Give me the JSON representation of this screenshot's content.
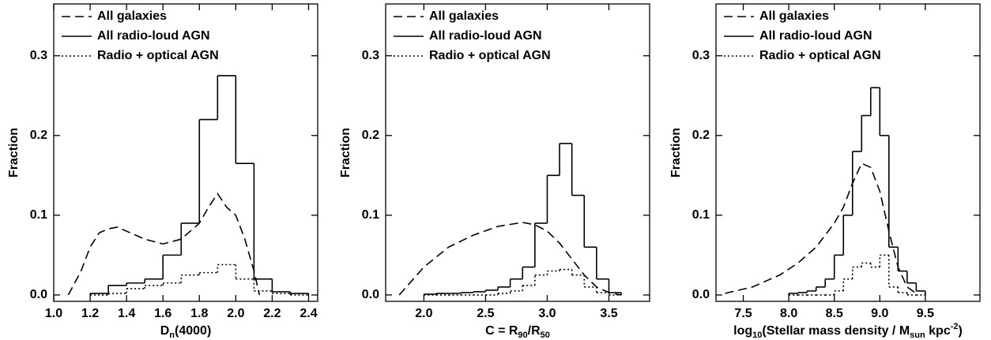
{
  "chart_data": [
    {
      "type": "histogram",
      "ylabel": "Fraction",
      "xlabel": [
        {
          "text": "D"
        },
        {
          "text": "n",
          "shift": "sub"
        },
        {
          "text": "(4000)"
        }
      ],
      "xlim": [
        1.0,
        2.45
      ],
      "ylim": [
        -0.008,
        0.365
      ],
      "xticks": [
        {
          "value": 1.0,
          "label": "1.0"
        },
        1.2,
        1.4,
        1.6,
        1.8,
        {
          "value": 2.0,
          "label": "2.0"
        },
        2.2,
        2.4
      ],
      "yticks": [
        {
          "value": 0,
          "label": "0.0"
        },
        0.1,
        0.2,
        0.3
      ],
      "legend": "upper left",
      "series": [
        {
          "name": "All galaxies",
          "style": "dashed",
          "color": "#000000",
          "x": [
            1.08,
            1.15,
            1.2,
            1.25,
            1.3,
            1.35,
            1.4,
            1.5,
            1.6,
            1.7,
            1.8,
            1.85,
            1.9,
            1.95,
            2.0,
            2.05,
            2.1,
            2.13
          ],
          "values": [
            0,
            0.03,
            0.06,
            0.078,
            0.083,
            0.085,
            0.08,
            0.07,
            0.064,
            0.07,
            0.09,
            0.11,
            0.127,
            0.11,
            0.1,
            0.07,
            0.03,
            0
          ]
        },
        {
          "name": "All radio-loud AGN",
          "style": "solid",
          "color": "#000000",
          "bins": [
            1.2,
            1.3,
            1.4,
            1.5,
            1.6,
            1.7,
            1.8,
            1.9,
            2.0,
            2.1,
            2.2,
            2.3,
            2.4
          ],
          "values": [
            0.002,
            0.012,
            0.015,
            0.02,
            0.05,
            0.09,
            0.22,
            0.275,
            0.165,
            0.02,
            0.004,
            0.002
          ]
        },
        {
          "name": "Radio + optical AGN",
          "style": "dotted",
          "color": "#000000",
          "bins": [
            1.2,
            1.3,
            1.4,
            1.5,
            1.6,
            1.7,
            1.8,
            1.9,
            2.0,
            2.1,
            2.2,
            2.3,
            2.4
          ],
          "values": [
            0,
            0.002,
            0.008,
            0.012,
            0.015,
            0.025,
            0.028,
            0.038,
            0.02,
            0.005,
            0.002,
            0
          ]
        }
      ]
    },
    {
      "type": "histogram",
      "ylabel": "Fraction",
      "xlabel": [
        {
          "text": "C = R"
        },
        {
          "text": "90",
          "shift": "sub"
        },
        {
          "text": "/R"
        },
        {
          "text": "50",
          "shift": "sub"
        }
      ],
      "xlim": [
        1.69,
        3.83
      ],
      "ylim": [
        -0.008,
        0.365
      ],
      "xticks": [
        {
          "value": 2.0,
          "label": "2.0"
        },
        2.5,
        {
          "value": 3.0,
          "label": "3.0"
        },
        3.5
      ],
      "yticks": [
        {
          "value": 0,
          "label": "0.0"
        },
        0.1,
        0.2,
        0.3
      ],
      "legend": "upper left",
      "series": [
        {
          "name": "All galaxies",
          "style": "dashed",
          "color": "#000000",
          "x": [
            1.8,
            2.0,
            2.2,
            2.4,
            2.6,
            2.8,
            2.9,
            3.0,
            3.1,
            3.2,
            3.3,
            3.4,
            3.5,
            3.6
          ],
          "values": [
            0,
            0.035,
            0.06,
            0.075,
            0.086,
            0.091,
            0.088,
            0.08,
            0.065,
            0.045,
            0.025,
            0.01,
            0.003,
            0
          ]
        },
        {
          "name": "All radio-loud AGN",
          "style": "solid",
          "color": "#000000",
          "bins": [
            2.0,
            2.1,
            2.2,
            2.3,
            2.4,
            2.5,
            2.6,
            2.7,
            2.8,
            2.9,
            3.0,
            3.1,
            3.2,
            3.3,
            3.4,
            3.5,
            3.6
          ],
          "values": [
            0.001,
            0.002,
            0.002,
            0.003,
            0.004,
            0.006,
            0.01,
            0.02,
            0.035,
            0.09,
            0.15,
            0.19,
            0.125,
            0.06,
            0.02,
            0.003
          ]
        },
        {
          "name": "Radio + optical AGN",
          "style": "dotted",
          "color": "#000000",
          "bins": [
            2.0,
            2.1,
            2.2,
            2.3,
            2.4,
            2.5,
            2.6,
            2.7,
            2.8,
            2.9,
            3.0,
            3.1,
            3.2,
            3.3,
            3.4,
            3.5,
            3.6
          ],
          "values": [
            0,
            0,
            0,
            0,
            0,
            0,
            0.002,
            0.005,
            0.012,
            0.025,
            0.03,
            0.032,
            0.025,
            0.01,
            0.003,
            0
          ]
        }
      ]
    },
    {
      "type": "histogram",
      "ylabel": "Fraction",
      "xlabel": [
        {
          "text": "log"
        },
        {
          "text": "10",
          "shift": "sub"
        },
        {
          "text": "(Stellar mass density / M"
        },
        {
          "text": "sun",
          "shift": "sub"
        },
        {
          "text": " kpc"
        },
        {
          "text": "-2",
          "shift": "super"
        },
        {
          "text": ")"
        }
      ],
      "xlim": [
        7.2,
        10.1
      ],
      "ylim": [
        -0.008,
        0.365
      ],
      "xticks": [
        7.5,
        {
          "value": 8.0,
          "label": "8.0"
        },
        8.5,
        {
          "value": 9.0,
          "label": "9.0"
        },
        9.5
      ],
      "yticks": [
        {
          "value": 0,
          "label": "0.0"
        },
        0.1,
        0.2,
        0.3
      ],
      "legend": "upper left",
      "series": [
        {
          "name": "All galaxies",
          "style": "dashed",
          "color": "#000000",
          "x": [
            7.3,
            7.6,
            7.9,
            8.1,
            8.3,
            8.5,
            8.6,
            8.7,
            8.8,
            8.9,
            9.0,
            9.1,
            9.2,
            9.3,
            9.4
          ],
          "values": [
            0.002,
            0.01,
            0.025,
            0.04,
            0.06,
            0.09,
            0.11,
            0.14,
            0.165,
            0.16,
            0.13,
            0.08,
            0.035,
            0.01,
            0.002
          ]
        },
        {
          "name": "All radio-loud AGN",
          "style": "solid",
          "color": "#000000",
          "bins": [
            8.0,
            8.1,
            8.2,
            8.3,
            8.4,
            8.5,
            8.6,
            8.7,
            8.8,
            8.9,
            9.0,
            9.1,
            9.2,
            9.3,
            9.4,
            9.5
          ],
          "values": [
            0.002,
            0.003,
            0.005,
            0.01,
            0.02,
            0.05,
            0.1,
            0.18,
            0.225,
            0.26,
            0.2,
            0.06,
            0.03,
            0.015,
            0.005
          ]
        },
        {
          "name": "Radio + optical AGN",
          "style": "dotted",
          "color": "#000000",
          "bins": [
            8.0,
            8.1,
            8.2,
            8.3,
            8.4,
            8.5,
            8.6,
            8.7,
            8.8,
            8.9,
            9.0,
            9.1,
            9.2,
            9.3,
            9.4,
            9.5
          ],
          "values": [
            0,
            0,
            0,
            0,
            0,
            0.005,
            0.02,
            0.035,
            0.04,
            0.035,
            0.05,
            0.01,
            0.003,
            0,
            0
          ]
        }
      ]
    }
  ]
}
